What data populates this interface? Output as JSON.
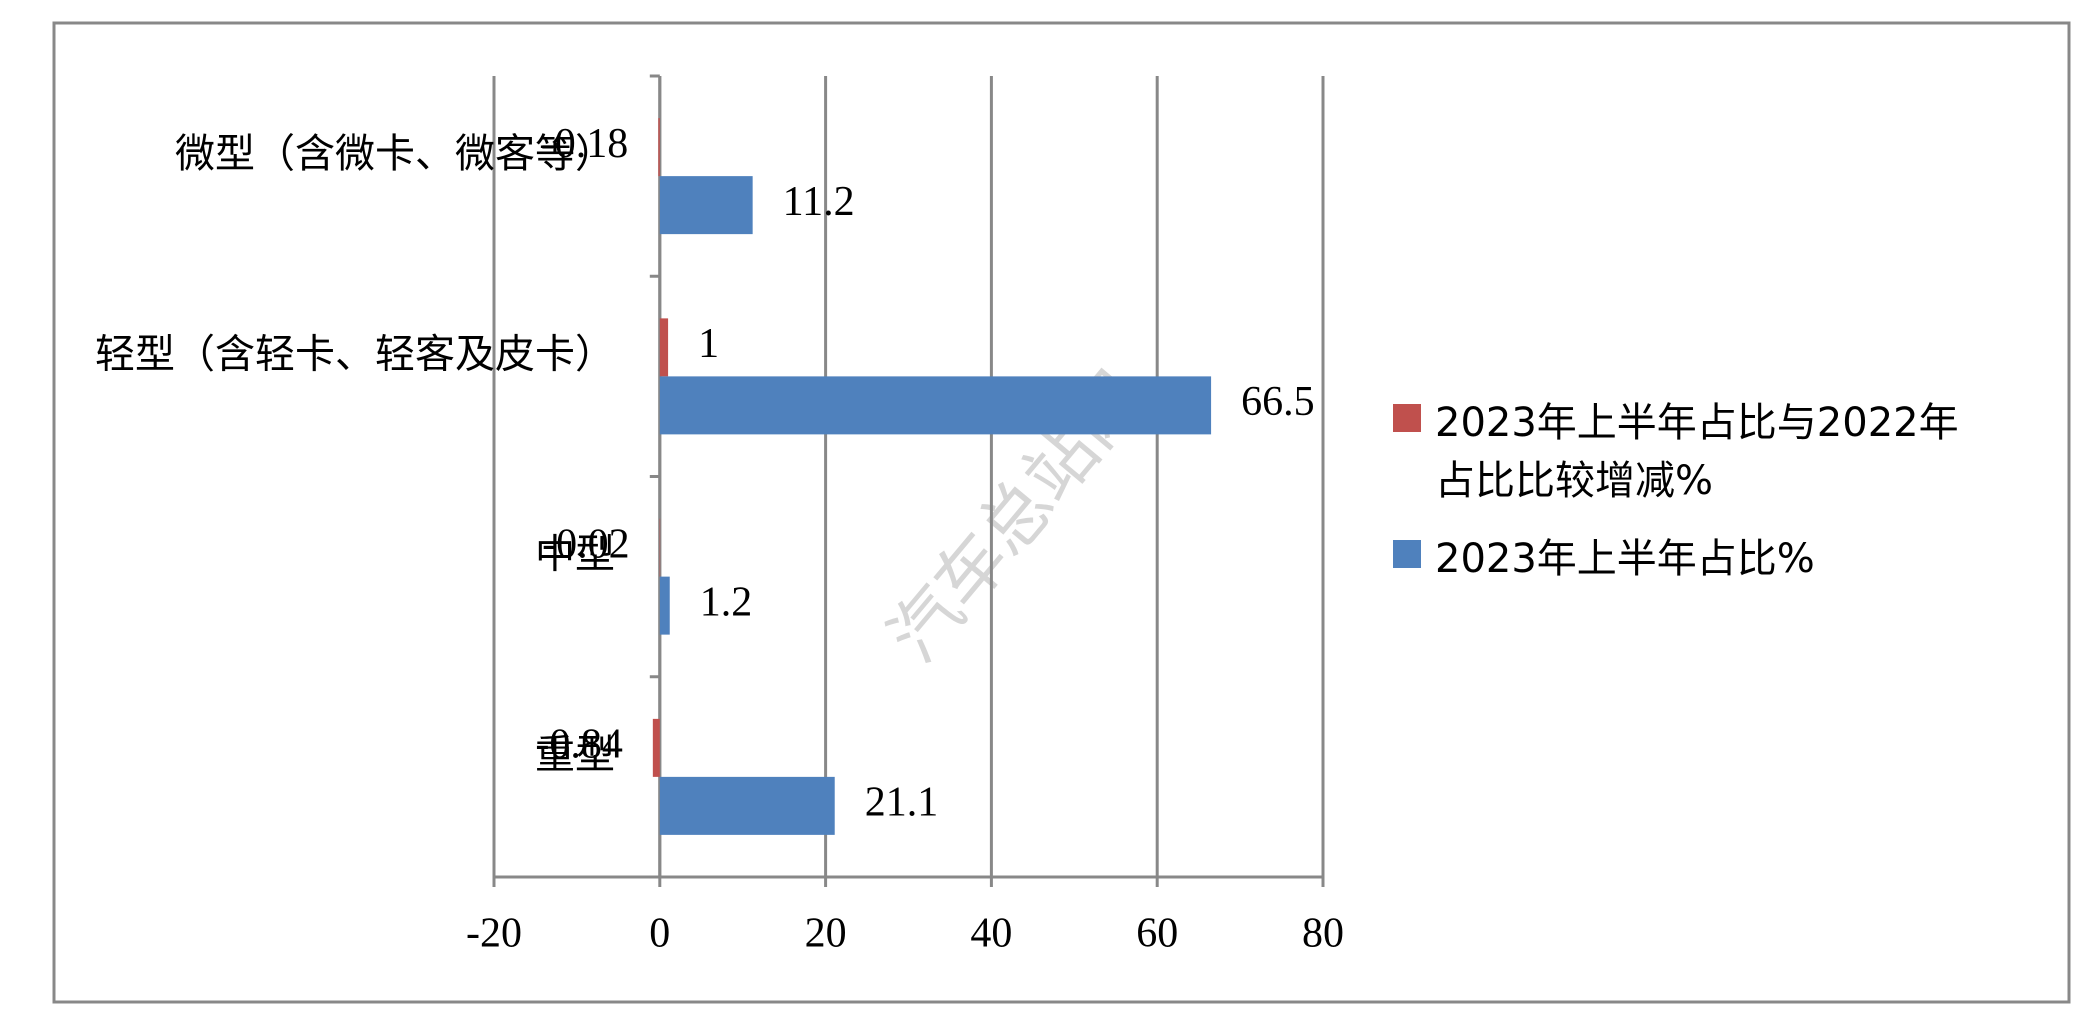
{
  "chart_data": {
    "type": "hbar",
    "categories": [
      "微型（含微卡、微客等）",
      "轻型（含轻卡、轻客及皮卡）",
      "中型",
      "重型"
    ],
    "series": [
      {
        "name": "2023年上半年占比与2022年占比比较增减%",
        "color": "#c0504d",
        "values": [
          -0.18,
          1,
          -0.02,
          -0.84
        ]
      },
      {
        "name": "2023年上半年占比%",
        "color": "#4f81bd",
        "values": [
          11.2,
          66.5,
          1.2,
          21.1
        ]
      }
    ],
    "xlim": [
      -20,
      80
    ],
    "xticks": [
      -20,
      0,
      20,
      40,
      60,
      80
    ],
    "grid": true,
    "legend": "right",
    "watermark": "汽车总站网"
  }
}
